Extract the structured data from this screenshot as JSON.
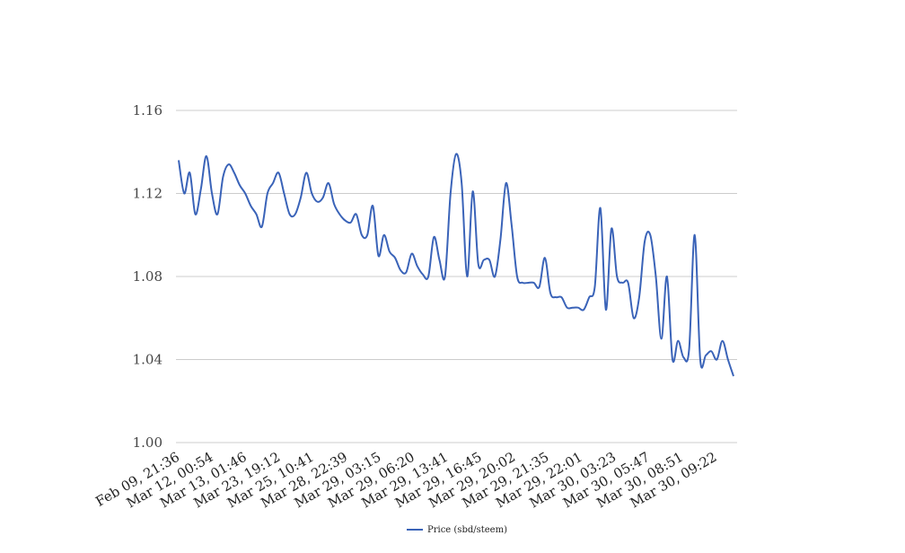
{
  "chart_data": {
    "type": "line",
    "title": "",
    "xlabel": "",
    "ylabel": "",
    "ylim": [
      1.0,
      1.16
    ],
    "y_ticks": [
      "1.00",
      "1.04",
      "1.08",
      "1.12",
      "1.16"
    ],
    "y_tick_values": [
      1.0,
      1.04,
      1.08,
      1.12,
      1.16
    ],
    "grid": "horizontal",
    "legend_position": "bottom",
    "line_color": "#3a63b8",
    "x_tick_labels": [
      "Feb 09, 21:36",
      "Mar 12, 00:54",
      "Mar 13, 01:46",
      "Mar 23, 19:12",
      "Mar 25, 10:41",
      "Mar 28, 22:39",
      "Mar 29, 03:15",
      "Mar 29, 06:20",
      "Mar 29, 13:41",
      "Mar 29, 16:45",
      "Mar 29, 20:02",
      "Mar 29, 21:35",
      "Mar 29, 22:01",
      "Mar 30, 03:23",
      "Mar 30, 05:47",
      "Mar 30, 08:51",
      "Mar 30, 09:22"
    ],
    "series": [
      {
        "name": "Price (sbd/steem)",
        "values": [
          1.136,
          1.12,
          1.13,
          1.11,
          1.122,
          1.138,
          1.12,
          1.11,
          1.128,
          1.134,
          1.13,
          1.124,
          1.12,
          1.114,
          1.11,
          1.104,
          1.12,
          1.125,
          1.13,
          1.12,
          1.11,
          1.11,
          1.118,
          1.13,
          1.12,
          1.116,
          1.118,
          1.125,
          1.115,
          1.11,
          1.107,
          1.106,
          1.11,
          1.1,
          1.1,
          1.114,
          1.09,
          1.1,
          1.092,
          1.089,
          1.083,
          1.082,
          1.091,
          1.085,
          1.081,
          1.08,
          1.099,
          1.088,
          1.08,
          1.12,
          1.139,
          1.125,
          1.08,
          1.121,
          1.086,
          1.088,
          1.088,
          1.08,
          1.098,
          1.125,
          1.105,
          1.08,
          1.077,
          1.077,
          1.077,
          1.075,
          1.089,
          1.072,
          1.07,
          1.07,
          1.065,
          1.065,
          1.065,
          1.064,
          1.07,
          1.075,
          1.113,
          1.064,
          1.103,
          1.08,
          1.077,
          1.077,
          1.06,
          1.07,
          1.097,
          1.1,
          1.08,
          1.05,
          1.08,
          1.04,
          1.049,
          1.041,
          1.045,
          1.1,
          1.04,
          1.042,
          1.044,
          1.04,
          1.049,
          1.04,
          1.032
        ]
      }
    ]
  }
}
